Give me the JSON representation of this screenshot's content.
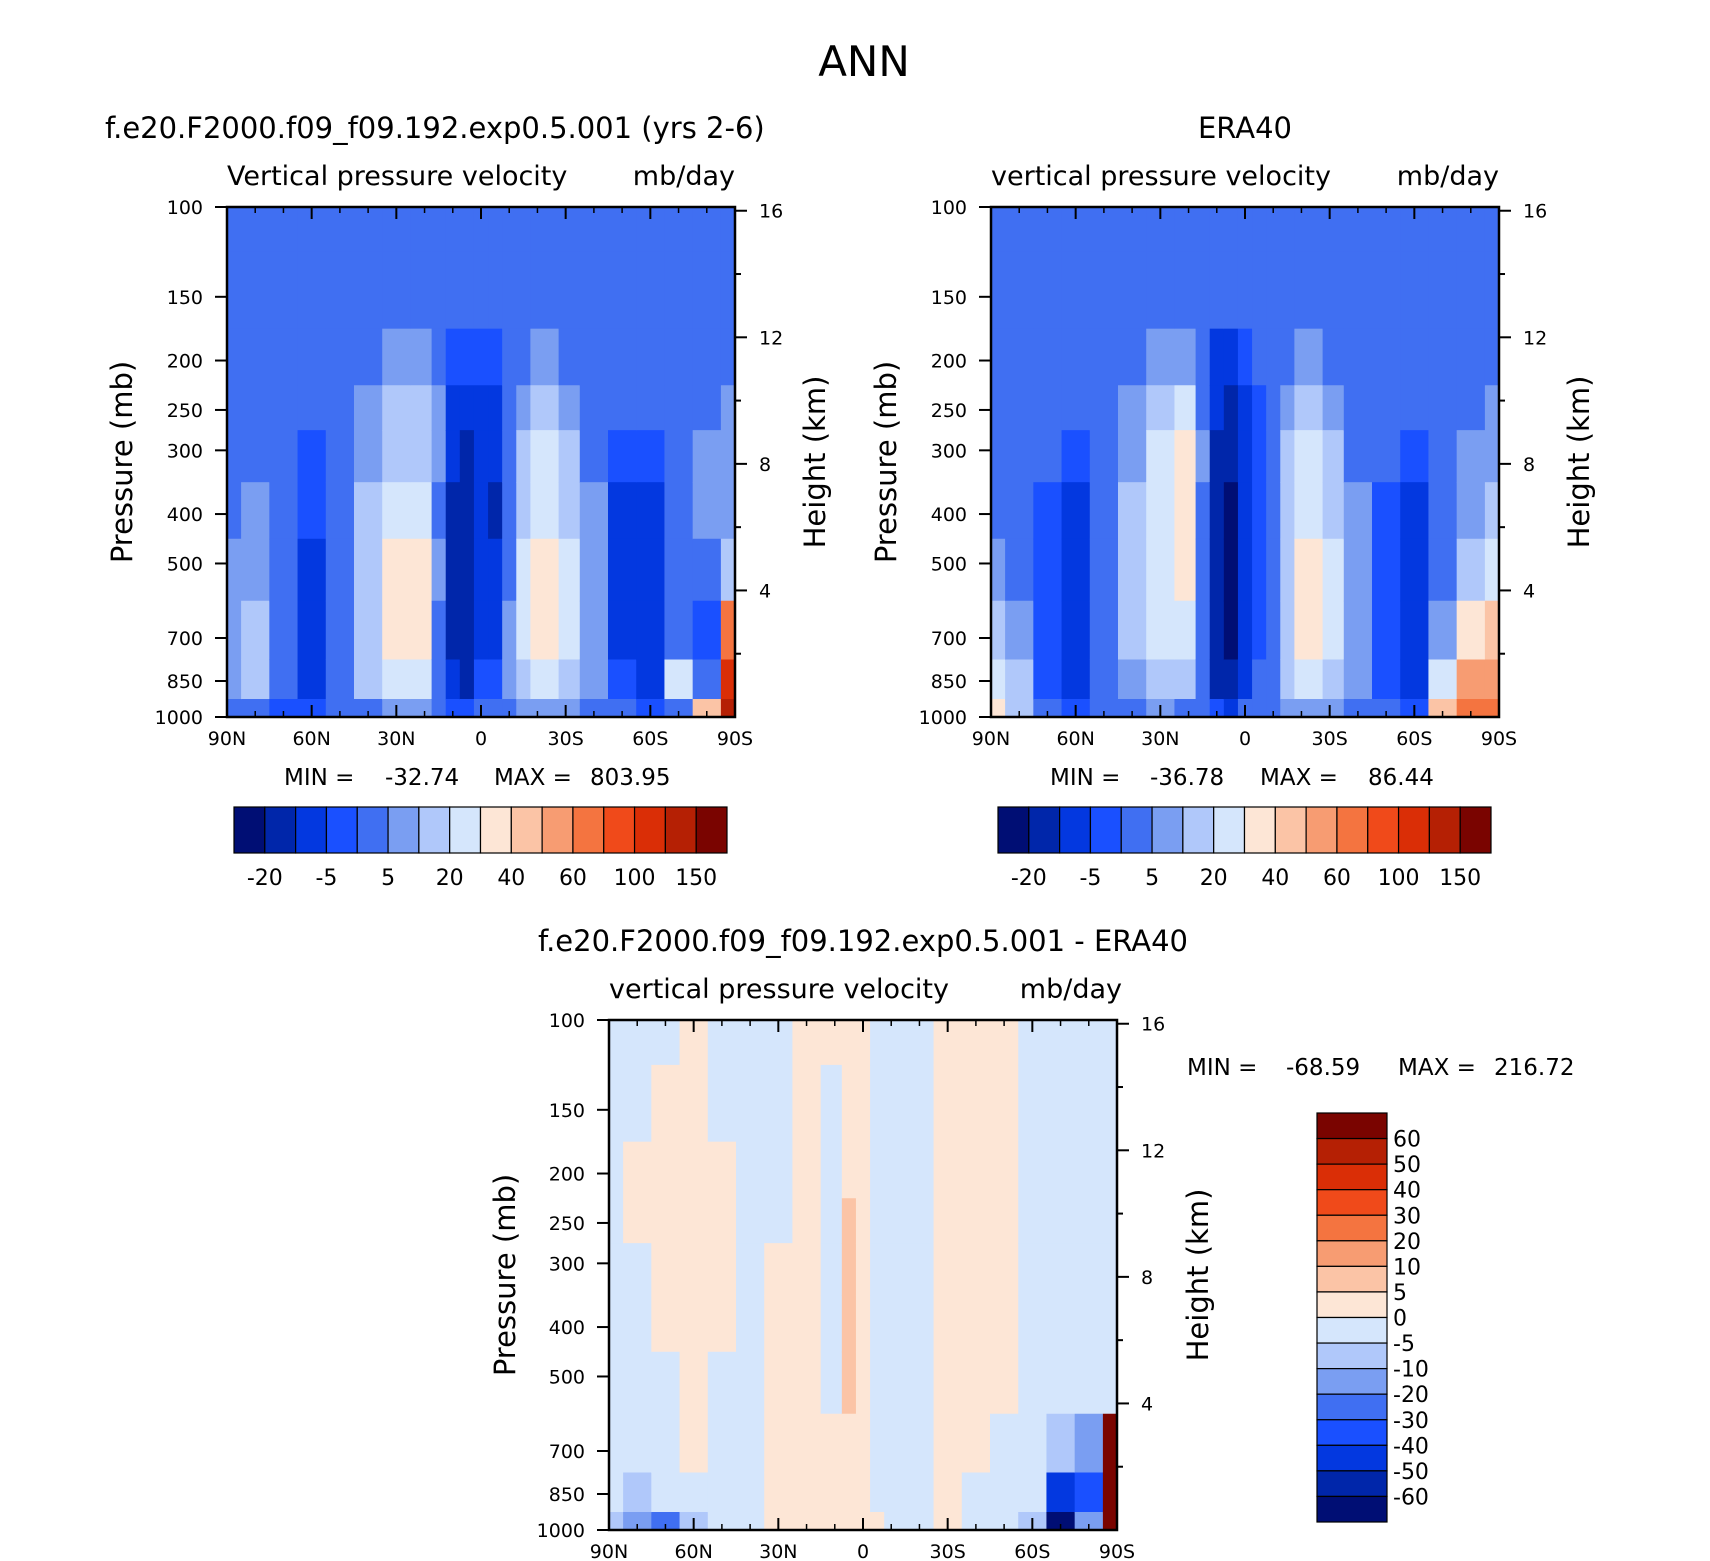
{
  "figure": {
    "title": "ANN"
  },
  "colors": {
    "palette": [
      "#000e74",
      "#0026aa",
      "#0338e0",
      "#1a50ff",
      "#406ff2",
      "#7a9ef2",
      "#b0c8fa",
      "#d5e6fc",
      "#fde6d6",
      "#fbc4a6",
      "#f79c72",
      "#f47440",
      "#f04a1a",
      "#da2e06",
      "#b52004",
      "#7a0400"
    ],
    "missing": "#ffffff",
    "frame": "#000000"
  },
  "chart_data": [
    {
      "type": "heatmap",
      "panel": "model",
      "title": "f.e20.F2000.f09_f09.192.exp0.5.001 (yrs 2-6)",
      "subtitle_left": "Vertical pressure velocity",
      "subtitle_right": "mb/day",
      "xlabel": "",
      "ylabel": "Pressure (mb)",
      "ylabel_right": "Height (km)",
      "x_ticks": [
        "90N",
        "60N",
        "30N",
        "0",
        "30S",
        "60S",
        "90S"
      ],
      "y_ticks": [
        100,
        150,
        200,
        250,
        300,
        400,
        500,
        700,
        850,
        1000
      ],
      "y_scale": "log",
      "y_right_ticks": [
        16,
        12,
        8,
        4
      ],
      "stats": {
        "min_label": "MIN =",
        "min": "-32.74",
        "max_label": "MAX =",
        "max": "803.95"
      },
      "colorbar": {
        "orientation": "horizontal",
        "labels": [
          "-20",
          "-5",
          "5",
          "20",
          "40",
          "60",
          "100",
          "150"
        ]
      },
      "columns": [
        {
          "lat": 90,
          "levels": [
            -5,
            -5,
            -5,
            -5,
            -5,
            -3,
            -2,
            -2,
            -2,
            -5
          ]
        },
        {
          "lat": 80,
          "levels": [
            -5,
            -5,
            -5,
            -3,
            -3,
            -2,
            -2,
            2,
            2,
            -5
          ]
        },
        {
          "lat": 70,
          "levels": [
            -5,
            -5,
            -5,
            -3,
            -5,
            -5,
            -5,
            -5,
            -5,
            -10
          ]
        },
        {
          "lat": 60,
          "levels": [
            -5,
            -5,
            -5,
            -5,
            -10,
            -10,
            -15,
            -15,
            -15,
            -10
          ]
        },
        {
          "lat": 50,
          "levels": [
            -5,
            -5,
            -3,
            -3,
            -3,
            -5,
            -5,
            -5,
            -5,
            -5
          ]
        },
        {
          "lat": 40,
          "levels": [
            -5,
            -3,
            -3,
            -2,
            -2,
            2,
            2,
            2,
            2,
            -3
          ]
        },
        {
          "lat": 30,
          "levels": [
            -5,
            -3,
            -2,
            2,
            2,
            5,
            10,
            10,
            5,
            -2
          ]
        },
        {
          "lat": 20,
          "levels": [
            -5,
            -3,
            -2,
            2,
            2,
            8,
            12,
            10,
            5,
            -2
          ]
        },
        {
          "lat": 15,
          "levels": [
            -5,
            -3,
            -3,
            -2,
            -2,
            -3,
            -2,
            -3,
            -3,
            -5
          ]
        },
        {
          "lat": 10,
          "levels": [
            -5,
            -5,
            -10,
            -15,
            -20,
            -25,
            -25,
            -25,
            -20,
            -10
          ]
        },
        {
          "lat": 5,
          "levels": [
            -5,
            -5,
            -10,
            -20,
            -30,
            -30,
            -30,
            -30,
            -25,
            -10
          ]
        },
        {
          "lat": 0,
          "levels": [
            -5,
            -5,
            -10,
            -15,
            -20,
            -20,
            -15,
            -15,
            -10,
            -5
          ]
        },
        {
          "lat": -5,
          "levels": [
            -5,
            -5,
            -10,
            -15,
            -20,
            -25,
            -20,
            -15,
            -10,
            -5
          ]
        },
        {
          "lat": -10,
          "levels": [
            -5,
            -5,
            -5,
            -5,
            -3,
            -3,
            -3,
            -2,
            -2,
            -3
          ]
        },
        {
          "lat": -15,
          "levels": [
            -5,
            -3,
            -3,
            -2,
            2,
            2,
            5,
            5,
            2,
            -2
          ]
        },
        {
          "lat": -20,
          "levels": [
            -5,
            -3,
            -2,
            2,
            5,
            8,
            12,
            12,
            8,
            -2
          ]
        },
        {
          "lat": -25,
          "levels": [
            -5,
            -3,
            -2,
            2,
            5,
            8,
            12,
            12,
            8,
            -2
          ]
        },
        {
          "lat": -30,
          "levels": [
            -5,
            -3,
            -3,
            -2,
            2,
            2,
            5,
            5,
            2,
            -2
          ]
        },
        {
          "lat": -40,
          "levels": [
            -5,
            -5,
            -3,
            -3,
            -3,
            -2,
            -2,
            -2,
            -2,
            -3
          ]
        },
        {
          "lat": -50,
          "levels": [
            -5,
            -5,
            -5,
            -5,
            -10,
            -15,
            -15,
            -15,
            -10,
            -5
          ]
        },
        {
          "lat": -60,
          "levels": [
            -5,
            -5,
            -5,
            -5,
            -10,
            -15,
            -20,
            -20,
            -20,
            -10
          ]
        },
        {
          "lat": -70,
          "levels": [
            -5,
            -5,
            -3,
            -5,
            -5,
            -5,
            -5,
            -3,
            5,
            -3
          ]
        },
        {
          "lat": -80,
          "levels": [
            -5,
            -5,
            -3,
            -3,
            -2,
            -2,
            -3,
            -10,
            -5,
            30
          ]
        },
        {
          "lat": -90,
          "levels": [
            -5,
            -5,
            -3,
            -2,
            -2,
            -2,
            2,
            60,
            120,
            200
          ]
        }
      ]
    },
    {
      "type": "heatmap",
      "panel": "obs",
      "title": "ERA40",
      "subtitle_left": "vertical pressure velocity",
      "subtitle_right": "mb/day",
      "xlabel": "",
      "ylabel": "Pressure (mb)",
      "ylabel_right": "Height (km)",
      "x_ticks": [
        "90N",
        "60N",
        "30N",
        "0",
        "30S",
        "60S",
        "90S"
      ],
      "y_ticks": [
        100,
        150,
        200,
        250,
        300,
        400,
        500,
        700,
        850,
        1000
      ],
      "y_scale": "log",
      "y_right_ticks": [
        16,
        12,
        8,
        4
      ],
      "stats": {
        "min_label": "MIN =",
        "min": "-36.78",
        "max_label": "MAX =",
        "max": "86.44"
      },
      "colorbar": {
        "orientation": "horizontal",
        "labels": [
          "-20",
          "-5",
          "5",
          "20",
          "40",
          "60",
          "100",
          "150"
        ]
      },
      "columns": [
        {
          "lat": 90,
          "levels": [
            -5,
            -5,
            -5,
            -5,
            -3,
            -3,
            -2,
            2,
            5,
            10
          ]
        },
        {
          "lat": 80,
          "levels": [
            -5,
            -5,
            -5,
            -5,
            -5,
            -3,
            -3,
            -2,
            2,
            2
          ]
        },
        {
          "lat": 70,
          "levels": [
            -5,
            -5,
            -5,
            -5,
            -5,
            -10,
            -10,
            -10,
            -10,
            -5
          ]
        },
        {
          "lat": 60,
          "levels": [
            -5,
            -5,
            -5,
            -5,
            -10,
            -15,
            -15,
            -20,
            -15,
            -10
          ]
        },
        {
          "lat": 50,
          "levels": [
            -5,
            -5,
            -5,
            -3,
            -3,
            -5,
            -5,
            -5,
            -5,
            -5
          ]
        },
        {
          "lat": 40,
          "levels": [
            -5,
            -3,
            -3,
            -2,
            -2,
            2,
            2,
            2,
            -2,
            -3
          ]
        },
        {
          "lat": 30,
          "levels": [
            -5,
            -3,
            -2,
            2,
            5,
            8,
            8,
            5,
            2,
            -2
          ]
        },
        {
          "lat": 20,
          "levels": [
            -5,
            -3,
            -2,
            5,
            10,
            12,
            10,
            8,
            2,
            -3
          ]
        },
        {
          "lat": 15,
          "levels": [
            -5,
            -5,
            -3,
            -3,
            -2,
            -3,
            -3,
            -5,
            -5,
            -5
          ]
        },
        {
          "lat": 10,
          "levels": [
            -5,
            -5,
            -15,
            -20,
            -25,
            -30,
            -30,
            -30,
            -25,
            -10
          ]
        },
        {
          "lat": 5,
          "levels": [
            -5,
            -5,
            -15,
            -25,
            -30,
            -35,
            -35,
            -35,
            -30,
            -15
          ]
        },
        {
          "lat": 0,
          "levels": [
            -5,
            -5,
            -10,
            -15,
            -20,
            -20,
            -20,
            -20,
            -15,
            -5
          ]
        },
        {
          "lat": -5,
          "levels": [
            -5,
            -5,
            -5,
            -10,
            -10,
            -10,
            -10,
            -10,
            -5,
            -3
          ]
        },
        {
          "lat": -10,
          "levels": [
            -5,
            -5,
            -5,
            -3,
            -3,
            -3,
            -3,
            -3,
            -3,
            -3
          ]
        },
        {
          "lat": -15,
          "levels": [
            -5,
            -3,
            -3,
            -2,
            2,
            2,
            2,
            2,
            2,
            -2
          ]
        },
        {
          "lat": -20,
          "levels": [
            -5,
            -3,
            -2,
            2,
            5,
            8,
            10,
            10,
            5,
            -2
          ]
        },
        {
          "lat": -25,
          "levels": [
            -5,
            -3,
            -2,
            2,
            5,
            8,
            10,
            10,
            5,
            -2
          ]
        },
        {
          "lat": -30,
          "levels": [
            -5,
            -3,
            -3,
            -2,
            2,
            2,
            5,
            5,
            2,
            -2
          ]
        },
        {
          "lat": -40,
          "levels": [
            -5,
            -5,
            -3,
            -3,
            -3,
            -2,
            -2,
            -2,
            -2,
            -3
          ]
        },
        {
          "lat": -50,
          "levels": [
            -5,
            -5,
            -5,
            -5,
            -5,
            -10,
            -10,
            -10,
            -10,
            -5
          ]
        },
        {
          "lat": -60,
          "levels": [
            -5,
            -5,
            -5,
            -5,
            -10,
            -15,
            -20,
            -20,
            -20,
            -10
          ]
        },
        {
          "lat": -70,
          "levels": [
            -5,
            -5,
            -3,
            -3,
            -3,
            -5,
            -5,
            -2,
            5,
            30
          ]
        },
        {
          "lat": -80,
          "levels": [
            -5,
            -5,
            -3,
            -3,
            -2,
            -2,
            2,
            10,
            50,
            70
          ]
        },
        {
          "lat": -90,
          "levels": [
            -5,
            -5,
            -3,
            -2,
            -2,
            2,
            5,
            20,
            40,
            60
          ]
        }
      ]
    },
    {
      "type": "heatmap",
      "panel": "difference",
      "title": "f.e20.F2000.f09_f09.192.exp0.5.001 - ERA40",
      "subtitle_left": "vertical pressure velocity",
      "subtitle_right": "mb/day",
      "xlabel": "",
      "ylabel": "Pressure (mb)",
      "ylabel_right": "Height (km)",
      "x_ticks": [
        "90N",
        "60N",
        "30N",
        "0",
        "30S",
        "60S",
        "90S"
      ],
      "y_ticks": [
        100,
        150,
        200,
        250,
        300,
        400,
        500,
        700,
        850,
        1000
      ],
      "y_scale": "log",
      "y_right_ticks": [
        16,
        12,
        8,
        4
      ],
      "stats": {
        "min_label": "MIN =",
        "min": "-68.59",
        "max_label": "MAX =",
        "max": "216.72"
      },
      "colorbar": {
        "orientation": "vertical",
        "labels": [
          "60",
          "50",
          "40",
          "30",
          "20",
          "10",
          "5",
          "0",
          "-5",
          "-10",
          "-20",
          "-30",
          "-40",
          "-50",
          "-60"
        ]
      },
      "columns": [
        {
          "lat": 90,
          "levels": [
            -2,
            -2,
            -2,
            -2,
            -2,
            -2,
            -2,
            -2,
            -5,
            -10
          ]
        },
        {
          "lat": 80,
          "levels": [
            -2,
            -2,
            2,
            2,
            -2,
            -2,
            -2,
            -2,
            -10,
            -20
          ]
        },
        {
          "lat": 70,
          "levels": [
            -2,
            2,
            2,
            2,
            2,
            2,
            -2,
            -2,
            -5,
            -30
          ]
        },
        {
          "lat": 60,
          "levels": [
            2,
            2,
            2,
            2,
            2,
            2,
            2,
            2,
            -5,
            -10
          ]
        },
        {
          "lat": 50,
          "levels": [
            -2,
            -2,
            2,
            2,
            2,
            2,
            -2,
            -2,
            -2,
            -2
          ]
        },
        {
          "lat": 40,
          "levels": [
            -2,
            -2,
            -2,
            -2,
            -2,
            -2,
            -2,
            -2,
            -2,
            -2
          ]
        },
        {
          "lat": 30,
          "levels": [
            -2,
            -2,
            -2,
            -2,
            2,
            2,
            2,
            2,
            2,
            2
          ]
        },
        {
          "lat": 20,
          "levels": [
            2,
            2,
            2,
            2,
            2,
            2,
            2,
            2,
            2,
            2
          ]
        },
        {
          "lat": 10,
          "levels": [
            2,
            -2,
            -2,
            -2,
            -2,
            -2,
            -2,
            2,
            2,
            2
          ]
        },
        {
          "lat": 5,
          "levels": [
            2,
            2,
            4,
            6,
            7,
            8,
            6,
            4,
            2,
            2
          ]
        },
        {
          "lat": 0,
          "levels": [
            2,
            2,
            2,
            3,
            3,
            3,
            2,
            2,
            2,
            2
          ]
        },
        {
          "lat": -5,
          "levels": [
            -2,
            -2,
            -2,
            -2,
            -2,
            -2,
            -2,
            -2,
            -2,
            2
          ]
        },
        {
          "lat": -10,
          "levels": [
            -2,
            -2,
            -2,
            -2,
            -4,
            -4,
            -4,
            -2,
            -2,
            -2
          ]
        },
        {
          "lat": -20,
          "levels": [
            -2,
            -2,
            -2,
            -2,
            -2,
            -2,
            -2,
            -2,
            -2,
            -2
          ]
        },
        {
          "lat": -30,
          "levels": [
            2,
            2,
            2,
            2,
            2,
            2,
            2,
            2,
            2,
            2
          ]
        },
        {
          "lat": -40,
          "levels": [
            2,
            2,
            2,
            2,
            2,
            2,
            2,
            2,
            -2,
            -2
          ]
        },
        {
          "lat": -50,
          "levels": [
            2,
            2,
            2,
            2,
            2,
            2,
            2,
            -2,
            -2,
            -2
          ]
        },
        {
          "lat": -60,
          "levels": [
            -2,
            -2,
            -2,
            -2,
            -2,
            -2,
            -2,
            -2,
            -5,
            -10
          ]
        },
        {
          "lat": -70,
          "levels": [
            -2,
            -2,
            -2,
            -2,
            -2,
            -2,
            -5,
            -10,
            -50,
            -65
          ]
        },
        {
          "lat": -80,
          "levels": [
            -2,
            -2,
            -2,
            -2,
            -2,
            -2,
            -2,
            -20,
            -40,
            -20
          ]
        },
        {
          "lat": -90,
          "levels": [
            -2,
            -2,
            -2,
            -2,
            -2,
            -2,
            -2,
            60,
            65,
            70
          ]
        }
      ]
    }
  ]
}
